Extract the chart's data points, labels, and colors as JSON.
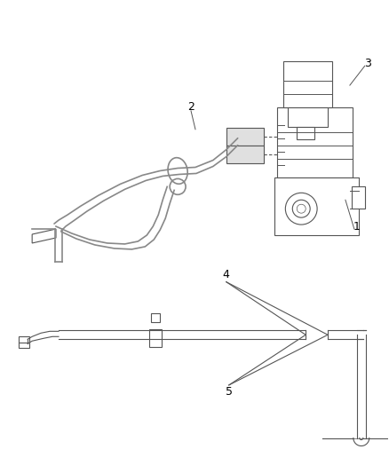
{
  "bg_color": "#ffffff",
  "line_color": "#888888",
  "dark_color": "#555555",
  "label_color": "#000000",
  "fig_w": 4.38,
  "fig_h": 5.33,
  "dpi": 100
}
